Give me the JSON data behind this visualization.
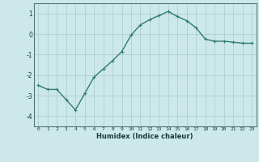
{
  "x": [
    0,
    1,
    2,
    3,
    4,
    5,
    6,
    7,
    8,
    9,
    10,
    11,
    12,
    13,
    14,
    15,
    16,
    17,
    18,
    19,
    20,
    21,
    22,
    23
  ],
  "y": [
    -2.5,
    -2.7,
    -2.7,
    -3.2,
    -3.7,
    -2.9,
    -2.1,
    -1.7,
    -1.3,
    -0.85,
    -0.05,
    0.45,
    0.7,
    0.9,
    1.1,
    0.85,
    0.65,
    0.3,
    -0.25,
    -0.35,
    -0.35,
    -0.4,
    -0.45,
    -0.45
  ],
  "line_color": "#2e7d6e",
  "marker": "+",
  "marker_size": 3,
  "linewidth": 1.0,
  "xlabel": "Humidex (Indice chaleur)",
  "xlim": [
    -0.5,
    23.5
  ],
  "ylim": [
    -4.5,
    1.5
  ],
  "xtick_labels": [
    "0",
    "1",
    "2",
    "3",
    "4",
    "5",
    "6",
    "7",
    "8",
    "9",
    "10",
    "11",
    "12",
    "13",
    "14",
    "15",
    "16",
    "17",
    "18",
    "19",
    "20",
    "21",
    "22",
    "23"
  ],
  "ytick_values": [
    -4,
    -3,
    -2,
    -1,
    0,
    1
  ],
  "bg_color": "#cce8e8",
  "grid_color": "#aacccc",
  "font_color": "#1a3a3a",
  "spine_color": "#557777"
}
